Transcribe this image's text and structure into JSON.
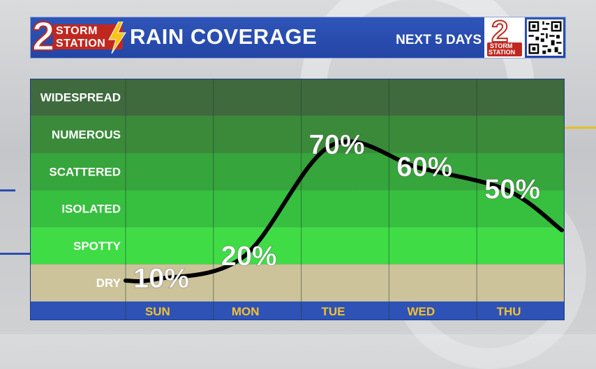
{
  "header": {
    "logo_storm": "STORM",
    "logo_station": "STATION",
    "logo_number": "2",
    "title": "RAIN COVERAGE",
    "subtitle": "NEXT 5 DAYS",
    "right_logo_storm": "STORM",
    "right_logo_station": "STATION",
    "right_logo_number": "2"
  },
  "colors": {
    "header_blue": "#2a4db2",
    "axis_blue": "#2f52b6",
    "day_label": "#f2c230",
    "line": "#000000",
    "widespread": "#3e6a3e",
    "numerous": "#3a8a3a",
    "scattered": "#36a53b",
    "isolated": "#37bf3f",
    "spotty": "#3fdc46",
    "dry": "#cdc39a"
  },
  "chart_data": {
    "type": "line",
    "categories": [
      "SUN",
      "MON",
      "TUE",
      "WED",
      "THU"
    ],
    "y_levels": [
      "DRY",
      "SPOTTY",
      "ISOLATED",
      "SCATTERED",
      "NUMEROUS",
      "WIDESPREAD"
    ],
    "series": [
      {
        "values": [
          10,
          20,
          70,
          60,
          50
        ]
      }
    ],
    "data_labels": [
      "10%",
      "20%",
      "70%",
      "60%",
      "50%"
    ],
    "ylim": [
      0,
      100
    ],
    "grid": true,
    "legend": "none"
  }
}
